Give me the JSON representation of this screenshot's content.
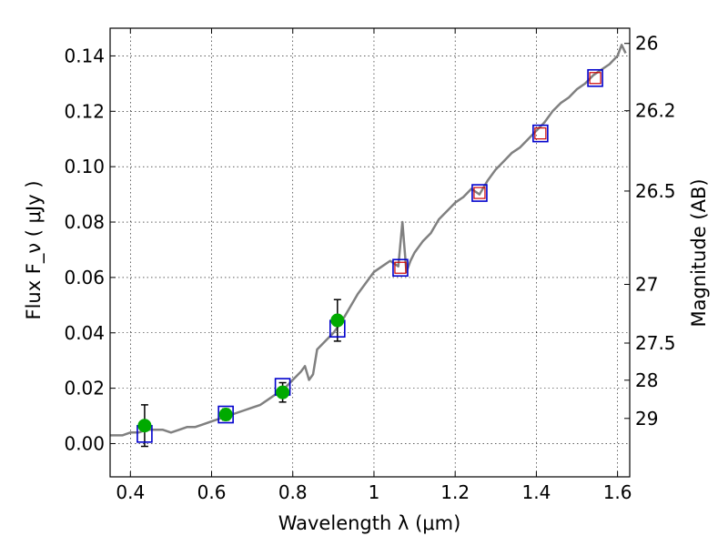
{
  "chart_data": {
    "type": "scatter",
    "xlabel": "Wavelength  λ (μm)",
    "ylabel": "Flux  F_ν  ( μJy )",
    "ylabel_right": "Magnitude (AB)",
    "xlim": [
      0.35,
      1.63
    ],
    "ylim": [
      -0.012,
      0.15
    ],
    "grid": true,
    "x_ticks": [
      0.4,
      0.6,
      0.8,
      1.0,
      1.2,
      1.4,
      1.6
    ],
    "x_tick_labels": [
      "0.4",
      "0.6",
      "0.8",
      "1",
      "1.2",
      "1.4",
      "1.6"
    ],
    "y_ticks": [
      0.0,
      0.02,
      0.04,
      0.06,
      0.08,
      0.1,
      0.12,
      0.14
    ],
    "y_tick_labels": [
      "0.00",
      "0.02",
      "0.04",
      "0.06",
      "0.08",
      "0.10",
      "0.12",
      "0.14"
    ],
    "right_ticks": [
      {
        "flux": 0.1445,
        "label": "26"
      },
      {
        "flux": 0.1202,
        "label": "26.2"
      },
      {
        "flux": 0.0912,
        "label": "26.5"
      },
      {
        "flux": 0.0575,
        "label": "27"
      },
      {
        "flux": 0.0363,
        "label": "27.5"
      },
      {
        "flux": 0.0229,
        "label": "28"
      },
      {
        "flux": 0.0091,
        "label": "29"
      }
    ],
    "colors": {
      "spectrum": "#808080",
      "observed": "#00aa00",
      "model": "#0000cc",
      "model_inner": "#cc0000",
      "errorbar": "#000000"
    },
    "series": [
      {
        "kind": "spectrum",
        "x": [
          0.35,
          0.38,
          0.4,
          0.42,
          0.44,
          0.46,
          0.48,
          0.5,
          0.52,
          0.54,
          0.56,
          0.58,
          0.6,
          0.62,
          0.64,
          0.66,
          0.68,
          0.7,
          0.72,
          0.74,
          0.76,
          0.78,
          0.8,
          0.82,
          0.83,
          0.84,
          0.85,
          0.86,
          0.88,
          0.9,
          0.92,
          0.94,
          0.96,
          0.98,
          1.0,
          1.02,
          1.04,
          1.06,
          1.07,
          1.08,
          1.09,
          1.1,
          1.12,
          1.14,
          1.16,
          1.18,
          1.2,
          1.22,
          1.24,
          1.26,
          1.28,
          1.3,
          1.32,
          1.34,
          1.36,
          1.38,
          1.4,
          1.42,
          1.44,
          1.46,
          1.48,
          1.5,
          1.52,
          1.54,
          1.56,
          1.58,
          1.6,
          1.61,
          1.62
        ],
        "y": [
          0.003,
          0.003,
          0.004,
          0.004,
          0.005,
          0.005,
          0.005,
          0.004,
          0.005,
          0.006,
          0.006,
          0.007,
          0.008,
          0.009,
          0.01,
          0.011,
          0.012,
          0.013,
          0.014,
          0.016,
          0.018,
          0.02,
          0.023,
          0.026,
          0.028,
          0.023,
          0.025,
          0.034,
          0.037,
          0.04,
          0.044,
          0.049,
          0.054,
          0.058,
          0.062,
          0.064,
          0.066,
          0.064,
          0.08,
          0.062,
          0.066,
          0.069,
          0.073,
          0.076,
          0.081,
          0.084,
          0.087,
          0.089,
          0.092,
          0.09,
          0.095,
          0.099,
          0.102,
          0.105,
          0.107,
          0.11,
          0.113,
          0.116,
          0.12,
          0.123,
          0.125,
          0.128,
          0.13,
          0.133,
          0.135,
          0.137,
          0.14,
          0.144,
          0.141
        ]
      },
      {
        "kind": "observed",
        "x": [
          0.435,
          0.635,
          0.775,
          0.91
        ],
        "y": [
          0.0065,
          0.0105,
          0.0185,
          0.0445
        ],
        "err": [
          0.0075,
          0.002,
          0.0035,
          0.0075
        ]
      },
      {
        "kind": "model",
        "x": [
          0.435,
          0.635,
          0.775,
          0.91,
          1.065,
          1.26,
          1.41,
          1.545
        ],
        "y": [
          0.0035,
          0.0105,
          0.0205,
          0.0415,
          0.0635,
          0.0905,
          0.112,
          0.132
        ]
      },
      {
        "kind": "model_inner",
        "x": [
          1.065,
          1.26,
          1.41,
          1.545
        ],
        "y": [
          0.0635,
          0.0905,
          0.112,
          0.132
        ]
      }
    ]
  }
}
